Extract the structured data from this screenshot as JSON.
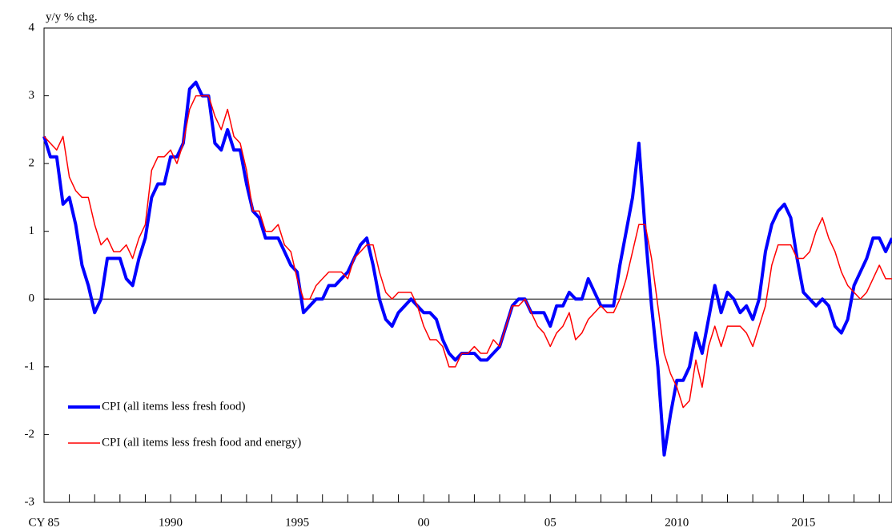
{
  "chart_data": {
    "type": "line",
    "y_label": "y/y % chg.",
    "xlim": [
      1985,
      2018.5
    ],
    "ylim": [
      -3,
      4
    ],
    "yticks": [
      -3,
      -2,
      -1,
      0,
      1,
      2,
      3,
      4
    ],
    "xticks": [
      {
        "value": 1985,
        "label": "CY 85"
      },
      1990,
      1995,
      {
        "value": 2000,
        "label": "00"
      },
      {
        "value": 2005,
        "label": "05"
      },
      2010,
      2015
    ],
    "xminor_ticks": [
      1986,
      1987,
      1988,
      1989,
      1991,
      1992,
      1993,
      1994,
      1996,
      1997,
      1998,
      1999,
      2001,
      2002,
      2003,
      2004,
      2006,
      2007,
      2008,
      2009,
      2011,
      2012,
      2013,
      2014,
      2016,
      2017,
      2018
    ],
    "legend": "lower left",
    "x": [
      1985,
      1985.25,
      1985.5,
      1985.75,
      1986,
      1986.25,
      1986.5,
      1986.75,
      1987,
      1987.25,
      1987.5,
      1987.75,
      1988,
      1988.25,
      1988.5,
      1988.75,
      1989,
      1989.25,
      1989.5,
      1989.75,
      1990,
      1990.25,
      1990.5,
      1990.75,
      1991,
      1991.25,
      1991.5,
      1991.75,
      1992,
      1992.25,
      1992.5,
      1992.75,
      1993,
      1993.25,
      1993.5,
      1993.75,
      1994,
      1994.25,
      1994.5,
      1994.75,
      1995,
      1995.25,
      1995.5,
      1995.75,
      1996,
      1996.25,
      1996.5,
      1996.75,
      1997,
      1997.25,
      1997.5,
      1997.75,
      1998,
      1998.25,
      1998.5,
      1998.75,
      1999,
      1999.25,
      1999.5,
      1999.75,
      2000,
      2000.25,
      2000.5,
      2000.75,
      2001,
      2001.25,
      2001.5,
      2001.75,
      2002,
      2002.25,
      2002.5,
      2002.75,
      2003,
      2003.25,
      2003.5,
      2003.75,
      2004,
      2004.25,
      2004.5,
      2004.75,
      2005,
      2005.25,
      2005.5,
      2005.75,
      2006,
      2006.25,
      2006.5,
      2006.75,
      2007,
      2007.25,
      2007.5,
      2007.75,
      2008,
      2008.25,
      2008.5,
      2008.75,
      2009,
      2009.25,
      2009.5,
      2009.75,
      2010,
      2010.25,
      2010.5,
      2010.75,
      2011,
      2011.25,
      2011.5,
      2011.75,
      2012,
      2012.25,
      2012.5,
      2012.75,
      2013,
      2013.25,
      2013.5,
      2013.75,
      2014,
      2014.25,
      2014.5,
      2014.75,
      2015,
      2015.25,
      2015.5,
      2015.75,
      2016,
      2016.25,
      2016.5,
      2016.75,
      2017,
      2017.25,
      2017.5,
      2017.75,
      2018,
      2018.25,
      2018.5
    ],
    "series": [
      {
        "name": "CPI (all items less fresh food)",
        "color": "#0000ff",
        "width": 4,
        "values": [
          2.4,
          2.1,
          2.1,
          1.4,
          1.5,
          1.1,
          0.5,
          0.2,
          -0.2,
          0.0,
          0.6,
          0.6,
          0.6,
          0.3,
          0.2,
          0.6,
          0.9,
          1.5,
          1.7,
          1.7,
          2.1,
          2.1,
          2.3,
          3.1,
          3.2,
          3.0,
          3.0,
          2.3,
          2.2,
          2.5,
          2.2,
          2.2,
          1.7,
          1.3,
          1.2,
          0.9,
          0.9,
          0.9,
          0.7,
          0.5,
          0.4,
          -0.2,
          -0.1,
          0.0,
          0.0,
          0.2,
          0.2,
          0.3,
          0.4,
          0.6,
          0.8,
          0.9,
          0.5,
          0.0,
          -0.3,
          -0.4,
          -0.2,
          -0.1,
          0.0,
          -0.1,
          -0.2,
          -0.2,
          -0.3,
          -0.6,
          -0.8,
          -0.9,
          -0.8,
          -0.8,
          -0.8,
          -0.9,
          -0.9,
          -0.8,
          -0.7,
          -0.4,
          -0.1,
          0.0,
          0.0,
          -0.2,
          -0.2,
          -0.2,
          -0.4,
          -0.1,
          -0.1,
          0.1,
          0.0,
          0.0,
          0.3,
          0.1,
          -0.1,
          -0.1,
          -0.1,
          0.5,
          1.0,
          1.5,
          2.3,
          1.0,
          -0.1,
          -1.0,
          -2.3,
          -1.7,
          -1.2,
          -1.2,
          -1.0,
          -0.5,
          -0.8,
          -0.3,
          0.2,
          -0.2,
          0.1,
          0.0,
          -0.2,
          -0.1,
          -0.3,
          0.0,
          0.7,
          1.1,
          1.3,
          1.4,
          1.2,
          0.6,
          0.1,
          0.0,
          -0.1,
          0.0,
          -0.1,
          -0.4,
          -0.5,
          -0.3,
          0.2,
          0.4,
          0.6,
          0.9,
          0.9,
          0.7,
          0.9
        ]
      },
      {
        "name": "CPI (all items less fresh food and energy)",
        "color": "#ff0000",
        "width": 1.5,
        "values": [
          2.4,
          2.3,
          2.2,
          2.4,
          1.8,
          1.6,
          1.5,
          1.5,
          1.1,
          0.8,
          0.9,
          0.7,
          0.7,
          0.8,
          0.6,
          0.9,
          1.1,
          1.9,
          2.1,
          2.1,
          2.2,
          2.0,
          2.3,
          2.8,
          3.0,
          3.0,
          3.0,
          2.7,
          2.5,
          2.8,
          2.4,
          2.3,
          1.9,
          1.3,
          1.3,
          1.0,
          1.0,
          1.1,
          0.8,
          0.7,
          0.3,
          0.0,
          0.0,
          0.2,
          0.3,
          0.4,
          0.4,
          0.4,
          0.3,
          0.6,
          0.7,
          0.8,
          0.8,
          0.4,
          0.1,
          0.0,
          0.1,
          0.1,
          0.1,
          -0.1,
          -0.4,
          -0.6,
          -0.6,
          -0.7,
          -1.0,
          -1.0,
          -0.8,
          -0.8,
          -0.7,
          -0.8,
          -0.8,
          -0.6,
          -0.7,
          -0.4,
          -0.1,
          -0.1,
          0.0,
          -0.2,
          -0.4,
          -0.5,
          -0.7,
          -0.5,
          -0.4,
          -0.2,
          -0.6,
          -0.5,
          -0.3,
          -0.2,
          -0.1,
          -0.2,
          -0.2,
          0.0,
          0.3,
          0.7,
          1.1,
          1.1,
          0.6,
          -0.1,
          -0.8,
          -1.1,
          -1.3,
          -1.6,
          -1.5,
          -0.9,
          -1.3,
          -0.7,
          -0.4,
          -0.7,
          -0.4,
          -0.4,
          -0.4,
          -0.5,
          -0.7,
          -0.4,
          -0.1,
          0.5,
          0.8,
          0.8,
          0.8,
          0.6,
          0.6,
          0.7,
          1.0,
          1.2,
          0.9,
          0.7,
          0.4,
          0.2,
          0.1,
          0.0,
          0.1,
          0.3,
          0.5,
          0.3,
          0.3
        ]
      }
    ]
  }
}
